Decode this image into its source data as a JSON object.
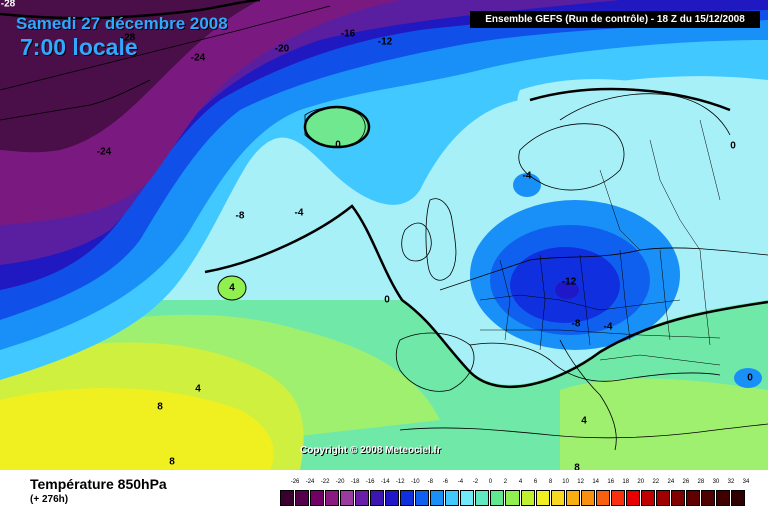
{
  "header": {
    "date_title": "Samedi 27 décembre 2008",
    "time_title": "7:00 locale",
    "model_info": "Ensemble GEFS (Run de contrôle)  -  18 Z du 15/12/2008"
  },
  "copyright": "Copyright © 2008 Meteociel.fr",
  "footer": {
    "field_title": "Température 850hPa",
    "lead_time": "(+ 276h)"
  },
  "isotherm_labels": [
    {
      "id": "m28a",
      "text": "-28"
    },
    {
      "id": "m28b",
      "text": "-28"
    },
    {
      "id": "m24a",
      "text": "-24"
    },
    {
      "id": "m24b",
      "text": "-24"
    },
    {
      "id": "m20",
      "text": "-20"
    },
    {
      "id": "m16",
      "text": "-16"
    },
    {
      "id": "m12a",
      "text": "-12"
    },
    {
      "id": "z1",
      "text": "0"
    },
    {
      "id": "z2",
      "text": "0"
    },
    {
      "id": "z3",
      "text": "0"
    },
    {
      "id": "z4",
      "text": "0"
    },
    {
      "id": "m8a",
      "text": "-8"
    },
    {
      "id": "m4a",
      "text": "-4"
    },
    {
      "id": "m4b",
      "text": "-4"
    },
    {
      "id": "p4a",
      "text": "4"
    },
    {
      "id": "m12b",
      "text": "-12"
    },
    {
      "id": "m8b",
      "text": "-8"
    },
    {
      "id": "m4c",
      "text": "-4"
    },
    {
      "id": "p4b",
      "text": "4"
    },
    {
      "id": "p8a",
      "text": "8"
    },
    {
      "id": "p4c",
      "text": "4"
    },
    {
      "id": "p8b",
      "text": "8"
    },
    {
      "id": "p8c",
      "text": "8"
    }
  ],
  "legend": {
    "labels": [
      "-26",
      "-24",
      "-22",
      "-20",
      "-18",
      "-16",
      "-14",
      "-12",
      "-10",
      "-8",
      "-6",
      "-4",
      "-2",
      "0",
      "2",
      "4",
      "6",
      "8",
      "10",
      "12",
      "14",
      "16",
      "18",
      "20",
      "22",
      "24",
      "26",
      "28",
      "30",
      "32",
      "34"
    ],
    "colors": [
      "#3a0030",
      "#55004a",
      "#720066",
      "#8b1a80",
      "#9b3ba0",
      "#6a1ea8",
      "#3c16b0",
      "#2018c8",
      "#1030e0",
      "#1060f0",
      "#1890f8",
      "#40c8ff",
      "#70eaf8",
      "#60e8c0",
      "#60e890",
      "#90f050",
      "#c0f030",
      "#f0f020",
      "#f8d820",
      "#f8b010",
      "#f89010",
      "#f86010",
      "#f83010",
      "#e80000",
      "#c00000",
      "#a00000",
      "#800000",
      "#600000",
      "#500000",
      "#400000",
      "#300000"
    ]
  },
  "colors": {
    "title_blue": "#2fa8ff",
    "polar_purple": "#4a0f48",
    "cold_blue": "#1030e0",
    "mild_cyan": "#70eaf8",
    "warm_green": "#60e890",
    "warm_yellow": "#f0f020"
  }
}
